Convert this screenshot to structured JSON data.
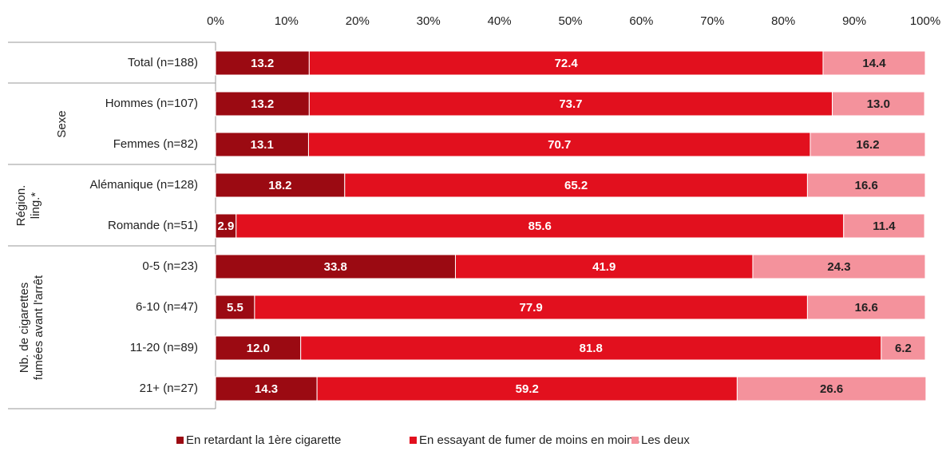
{
  "chart_data": {
    "type": "stacked-barh",
    "categories": [
      "Total (n=188)",
      "Hommes (n=107)",
      "Femmes (n=82)",
      "Alémanique (n=128)",
      "Romande (n=51)",
      "0-5 (n=23)",
      "6-10 (n=47)",
      "11-20 (n=89)",
      "21+ (n=27)"
    ],
    "group_labels": [
      [
        "Sexe"
      ],
      [
        "Région.",
        "ling.*"
      ],
      [
        "Nb. de cigarettes",
        "fumées avant l'arrêt"
      ]
    ],
    "series": [
      {
        "name": "En retardant la 1ère cigarette",
        "color": "#9b0a12",
        "values": [
          13.2,
          13.2,
          13.1,
          18.2,
          2.9,
          33.8,
          5.5,
          12.0,
          14.3
        ],
        "value_labels": [
          "13.2",
          "13.2",
          "13.1",
          "18.2",
          "2.9",
          "33.8",
          "5.5",
          "12.0",
          "14.3"
        ]
      },
      {
        "name": "En essayant de fumer de moins en moins",
        "color": "#e2101e",
        "values": [
          72.4,
          73.7,
          70.7,
          65.2,
          85.6,
          41.9,
          77.9,
          81.8,
          59.2
        ],
        "value_labels": [
          "72.4",
          "73.7",
          "70.7",
          "65.2",
          "85.6",
          "41.9",
          "77.9",
          "81.8",
          "59.2"
        ]
      },
      {
        "name": "Les deux",
        "color": "#f4929c",
        "values": [
          14.4,
          13.0,
          16.2,
          16.6,
          11.4,
          24.3,
          16.6,
          6.2,
          26.6
        ],
        "value_labels": [
          "14.4",
          "13.0",
          "16.2",
          "16.6",
          "11.4",
          "24.3",
          "16.6",
          "6.2",
          "26.6"
        ]
      }
    ],
    "xlim": [
      0,
      100
    ],
    "xticks": [
      {
        "value": 0,
        "label": "0%"
      },
      {
        "value": 10,
        "label": "10%"
      },
      {
        "value": 20,
        "label": "20%"
      },
      {
        "value": 30,
        "label": "30%"
      },
      {
        "value": 40,
        "label": "40%"
      },
      {
        "value": 50,
        "label": "50%"
      },
      {
        "value": 60,
        "label": "60%"
      },
      {
        "value": 70,
        "label": "70%"
      },
      {
        "value": 80,
        "label": "80%"
      },
      {
        "value": 90,
        "label": "90%"
      },
      {
        "value": 100,
        "label": "100%"
      }
    ]
  }
}
